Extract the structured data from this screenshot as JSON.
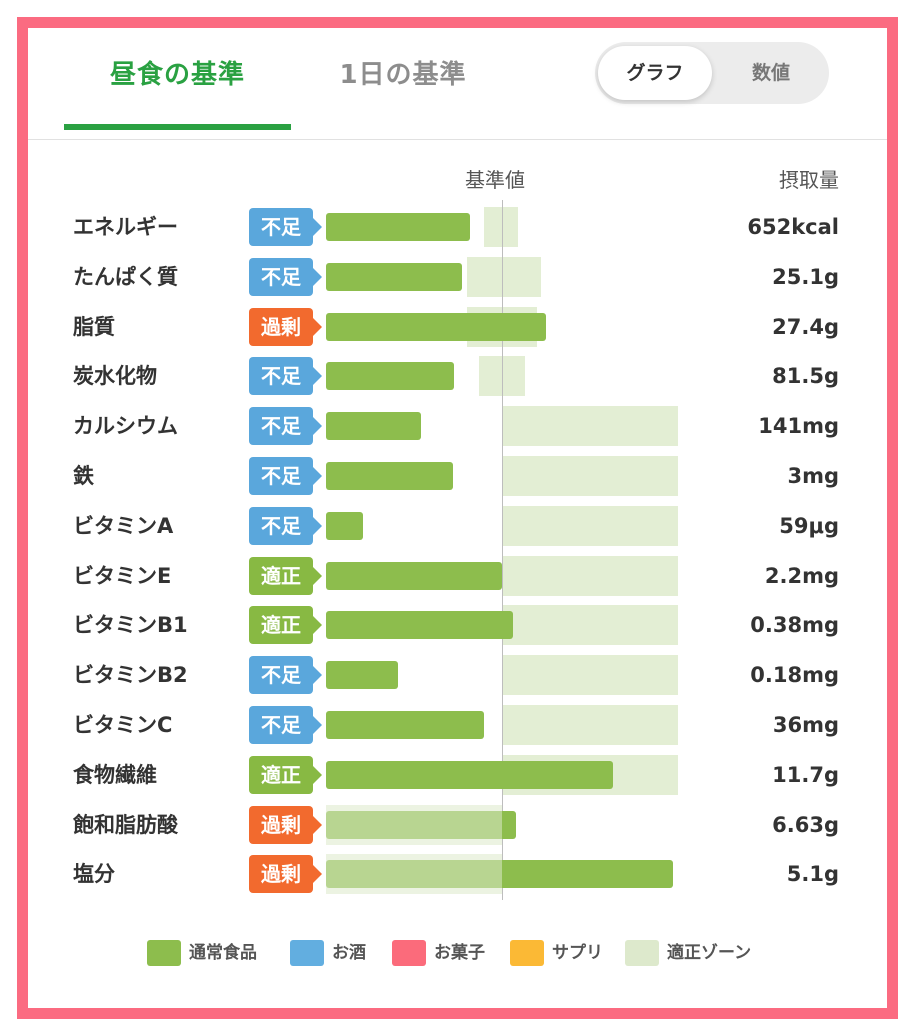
{
  "tabs": [
    {
      "label": "昼食の基準",
      "active": true
    },
    {
      "label": "1日の基準",
      "active": false
    }
  ],
  "view_toggle": {
    "options": [
      "グラフ",
      "数値"
    ],
    "selected": "グラフ"
  },
  "headers": {
    "reference": "基準値",
    "intake": "摂取量"
  },
  "status_colors": {
    "不足": "#5aa7dc",
    "過剰": "#f26a2e",
    "適正": "#88b943"
  },
  "chart_data": {
    "type": "bar",
    "categories": [
      "エネルギー",
      "たんぱく質",
      "脂質",
      "炭水化物",
      "カルシウム",
      "鉄",
      "ビタミンA",
      "ビタミンE",
      "ビタミンB1",
      "ビタミンB2",
      "ビタミンC",
      "食物繊維",
      "飽和脂肪酸",
      "塩分"
    ],
    "statuses": [
      "不足",
      "不足",
      "過剰",
      "不足",
      "不足",
      "不足",
      "不足",
      "適正",
      "適正",
      "不足",
      "不足",
      "適正",
      "過剰",
      "過剰"
    ],
    "values": [
      "652kcal",
      "25.1g",
      "27.4g",
      "81.5g",
      "141mg",
      "3mg",
      "59μg",
      "2.2mg",
      "0.38mg",
      "0.18mg",
      "36mg",
      "11.7g",
      "6.63g",
      "5.1g"
    ],
    "percent_of_reference": [
      82,
      77,
      125,
      73,
      54,
      72,
      21,
      100,
      106,
      41,
      90,
      163,
      108,
      197
    ],
    "optimal_zone_percent": [
      [
        90,
        109
      ],
      [
        80,
        122
      ],
      [
        80,
        120
      ],
      [
        87,
        113
      ],
      [
        100,
        200
      ],
      [
        100,
        200
      ],
      [
        100,
        200
      ],
      [
        100,
        200
      ],
      [
        100,
        200
      ],
      [
        100,
        200
      ],
      [
        100,
        200
      ],
      [
        100,
        200
      ],
      [
        0,
        100
      ],
      [
        0,
        100
      ]
    ],
    "reference_percent": 100,
    "series_colors": {
      "bar": "#8dbd4d",
      "zone": "#dde9cc"
    }
  },
  "legend": [
    {
      "label": "通常食品",
      "color": "#8dbd4d"
    },
    {
      "label": "お酒",
      "color": "#62aee0"
    },
    {
      "label": "お菓子",
      "color": "#fb6b7b"
    },
    {
      "label": "サプリ",
      "color": "#fbb935"
    },
    {
      "label": "適正ゾーン",
      "color": "#dde9cc"
    }
  ]
}
